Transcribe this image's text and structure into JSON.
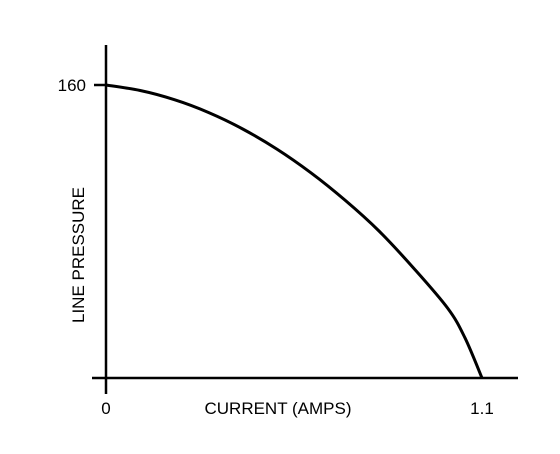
{
  "chart_data": {
    "type": "line",
    "title": "",
    "xlabel": "CURRENT (AMPS)",
    "ylabel": "LINE PRESSURE",
    "xlim": [
      0,
      1.1
    ],
    "ylim": [
      0,
      160
    ],
    "x_ticks": [
      {
        "value": 0,
        "label": "0"
      },
      {
        "value": 1.1,
        "label": "1.1"
      }
    ],
    "y_ticks": [
      {
        "value": 160,
        "label": "160"
      }
    ],
    "grid": false,
    "series": [
      {
        "x": [
          0,
          0.1,
          0.2,
          0.3,
          0.4,
          0.5,
          0.6,
          0.7,
          0.8,
          0.9,
          1.0,
          1.05,
          1.1
        ],
        "y": [
          160,
          157,
          152,
          145,
          136,
          125,
          112,
          97,
          80,
          60,
          38,
          22,
          0
        ]
      }
    ]
  }
}
